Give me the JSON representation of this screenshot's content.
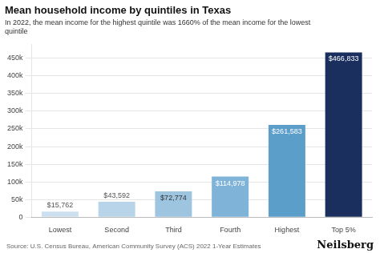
{
  "chart_data": {
    "type": "bar",
    "title": "Mean household income by quintiles in Texas",
    "subtitle": "In 2022, the mean income for the highest quintile was 1660% of the mean income for the lowest\nquintile",
    "categories": [
      "Lowest",
      "Second",
      "Third",
      "Fourth",
      "Highest",
      "Top 5%"
    ],
    "values": [
      15762,
      43592,
      72774,
      114978,
      261583,
      466833
    ],
    "value_labels": [
      "$15,762",
      "$43,592",
      "$72,774",
      "$114,978",
      "$261,583",
      "$466,833"
    ],
    "data_labels": true,
    "colors": [
      "#cde0ef",
      "#b8d4e8",
      "#9dc5e0",
      "#7fb3d8",
      "#5b9ec9",
      "#1b2f5e"
    ],
    "ylim": [
      0,
      490000
    ],
    "yticks": [
      0,
      {
        "value": 50000,
        "label": "50k"
      },
      {
        "value": 100000,
        "label": "100k"
      },
      {
        "value": 150000,
        "label": "150k"
      },
      {
        "value": 200000,
        "label": "200k"
      },
      {
        "value": 250000,
        "label": "250k"
      },
      {
        "value": 300000,
        "label": "300k"
      },
      {
        "value": 350000,
        "label": "350k"
      },
      {
        "value": 400000,
        "label": "400k"
      },
      {
        "value": 450000,
        "label": "450k"
      }
    ],
    "grid": true,
    "annotations": [
      "Source: U.S. Census Bureau, American Community Survey (ACS) 2022 1-Year Estimates",
      "Neilsberg"
    ]
  }
}
